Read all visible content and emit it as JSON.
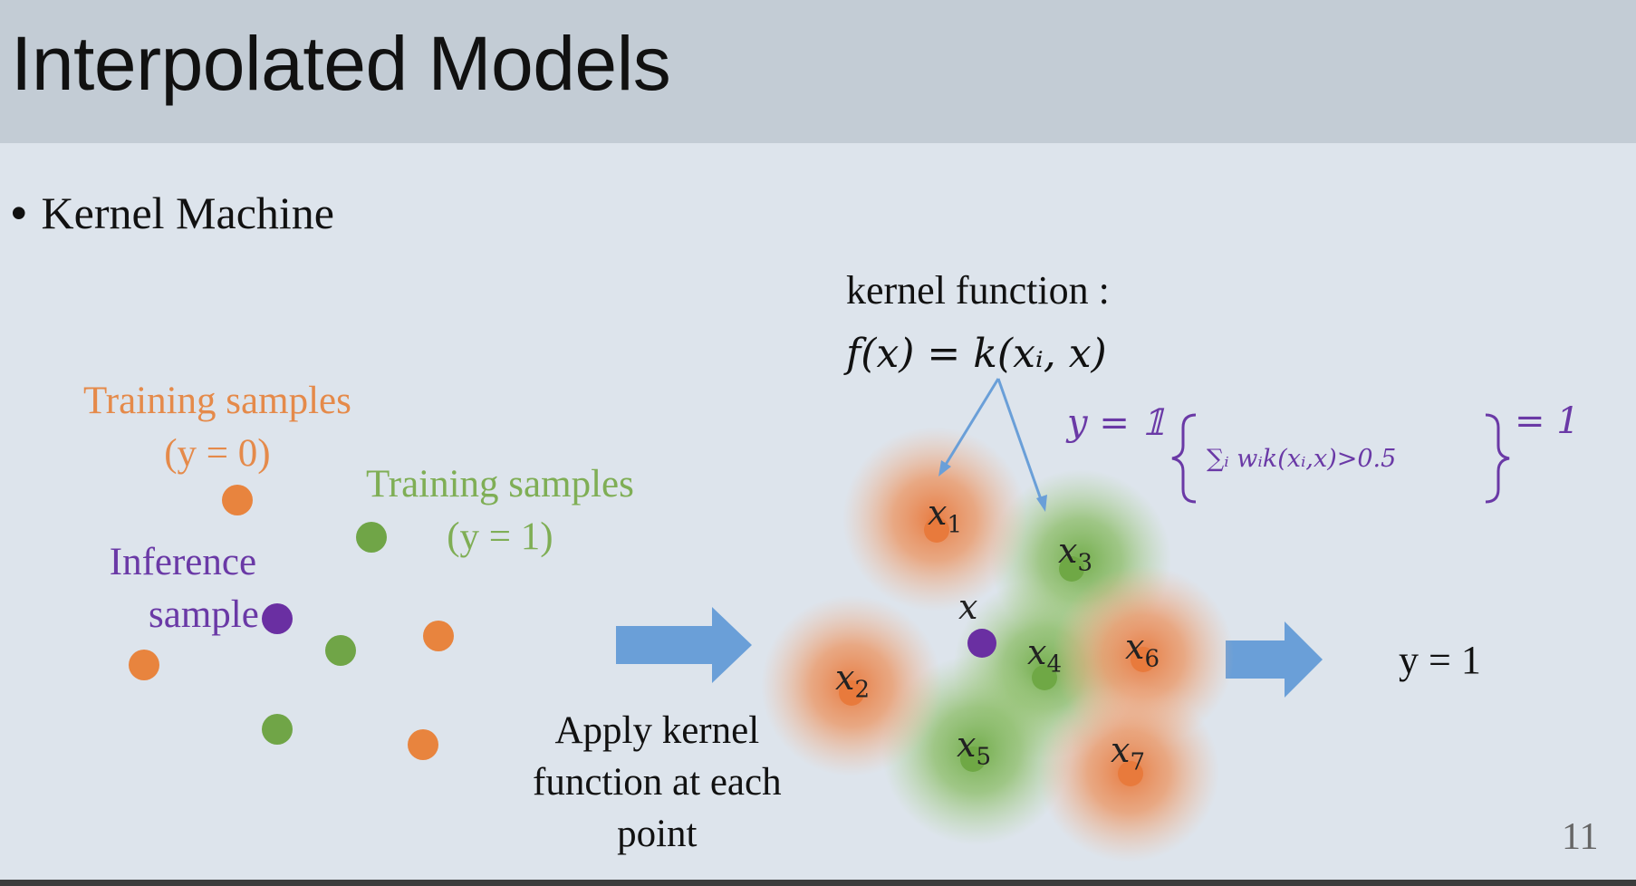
{
  "slide": {
    "title": "Interpolated Models",
    "bullet": "Kernel Machine",
    "page_number": "11"
  },
  "left": {
    "training_0_line1": "Training samples",
    "training_0_line2": "(y = 0)",
    "training_1_line1": "Training samples",
    "training_1_line2": "(y = 1)",
    "inference_line1": "Inference",
    "inference_line2": "sample"
  },
  "middle": {
    "apply_line1": "Apply kernel",
    "apply_line2": "function at each",
    "apply_line3": "point"
  },
  "kernel": {
    "label": "kernel function :",
    "formula": "f(x) = k(xᵢ, x)",
    "decision_lhs": "y = 𝟙",
    "decision_cond": "∑ᵢ wᵢk(xᵢ,x)>0.5",
    "decision_rhs": "= 1"
  },
  "points": {
    "x1": "x",
    "x1_sub": "1",
    "x2": "x",
    "x2_sub": "2",
    "x3": "x",
    "x3_sub": "3",
    "x4": "x",
    "x4_sub": "4",
    "x5": "x",
    "x5_sub": "5",
    "x6": "x",
    "x6_sub": "6",
    "x7": "x",
    "x7_sub": "7",
    "x": "x"
  },
  "result": "y = 1",
  "colors": {
    "orange": "#e58a4a",
    "green": "#7fae55",
    "purple": "#6a39a6",
    "arrow_blue": "#6a9fd8"
  }
}
